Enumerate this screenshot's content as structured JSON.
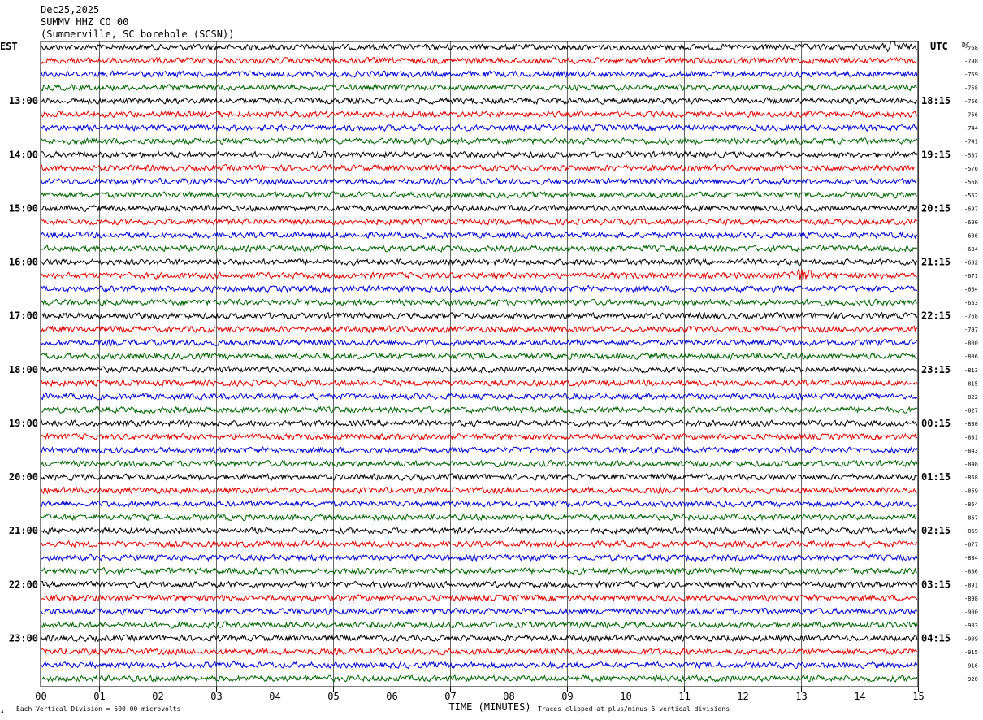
{
  "header": {
    "date": "Dec25,2025",
    "station": "SUMMV HHZ CO 00",
    "location": "(Summerville, SC borehole (SCSN))"
  },
  "labels": {
    "left_tz": "EST",
    "right_tz": "UTC",
    "dc_label": "DC",
    "xlabel": "TIME (MINUTES)",
    "footer_left": "Each Vertical Division =  500.00 microvolts",
    "footer_right": "Traces clipped at plus/minus 5 vertical divisions",
    "footer_mark": "A"
  },
  "colors": {
    "trace_cycle": [
      "#000000",
      "#e00000",
      "#0000d0",
      "#006000"
    ],
    "grid": "#000000",
    "text": "#000000"
  },
  "chart_data": {
    "type": "line",
    "title": "SUMMV HHZ CO 00",
    "xlabel": "TIME (MINUTES)",
    "xlim": [
      0,
      15
    ],
    "x_ticks": [
      "00",
      "01",
      "02",
      "03",
      "04",
      "05",
      "06",
      "07",
      "08",
      "09",
      "10",
      "11",
      "12",
      "13",
      "14",
      "15"
    ],
    "trace_count": 48,
    "minutes_per_trace": 15,
    "grid": true,
    "est_hour_labels": [
      "13:00",
      "14:00",
      "15:00",
      "16:00",
      "17:00",
      "18:00",
      "19:00",
      "20:00",
      "21:00",
      "22:00",
      "23:00"
    ],
    "utc_hour_labels": [
      "18:15",
      "19:15",
      "20:15",
      "21:15",
      "22:15",
      "23:15",
      "00:15",
      "01:15",
      "02:15",
      "03:15",
      "04:15"
    ],
    "hour_label_first_trace": 4,
    "hour_label_every": 4,
    "dc_offsets": [
      -768,
      -798,
      -769,
      -758,
      -756,
      -756,
      -744,
      -741,
      -587,
      -576,
      -568,
      -562,
      -697,
      -690,
      -686,
      -684,
      -682,
      -671,
      -664,
      -663,
      -768,
      -797,
      -800,
      -806,
      -813,
      -815,
      -822,
      -827,
      -830,
      -831,
      -843,
      -848,
      -858,
      -859,
      -864,
      -867,
      -869,
      -877,
      -884,
      -886,
      -891,
      -898,
      -900,
      -903,
      -909,
      -915,
      -916,
      -920
    ],
    "events": [
      {
        "trace": 17,
        "minute": 13.0,
        "amplitude": 2.6
      },
      {
        "trace": 0,
        "minute": 14.6,
        "amplitude": 1.4
      }
    ]
  }
}
